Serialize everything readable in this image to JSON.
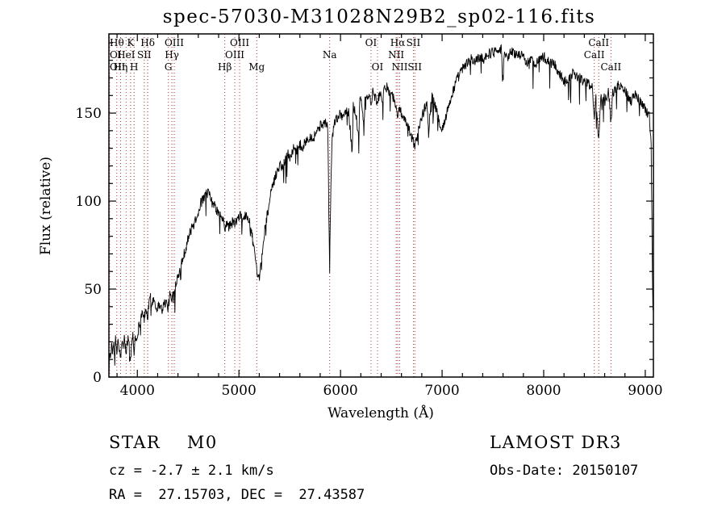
{
  "chart_data": {
    "type": "line",
    "title": "spec-57030-M31028N29B2_sp02-116.fits",
    "xlabel": "Wavelength (Å)",
    "ylabel": "Flux (relative)",
    "xlim": [
      3720,
      9080
    ],
    "ylim": [
      0,
      195
    ],
    "xticks": [
      4000,
      5000,
      6000,
      7000,
      8000,
      9000
    ],
    "yticks": [
      0,
      50,
      100,
      150
    ],
    "x_minor_step": 200,
    "y_minor_step": 10,
    "grid": false,
    "legend": "none",
    "line_color": "#000000",
    "marker_line_color": "#b03030",
    "noise_amplitude": 3,
    "line_markers": [
      {
        "label": "Hθ",
        "wavelength": 3798,
        "row": 1
      },
      {
        "label": "K",
        "wavelength": 3934,
        "row": 1
      },
      {
        "label": "Hδ",
        "wavelength": 4102,
        "row": 1
      },
      {
        "label": "OIII",
        "wavelength": 4363,
        "row": 1
      },
      {
        "label": "OIII",
        "wavelength": 5007,
        "row": 1
      },
      {
        "label": "OI",
        "wavelength": 6300,
        "row": 1
      },
      {
        "label": "Hα",
        "wavelength": 6563,
        "row": 1
      },
      {
        "label": "SII",
        "wavelength": 6717,
        "row": 1
      },
      {
        "label": "CaII",
        "wavelength": 8542,
        "row": 1
      },
      {
        "label": "OI",
        "wavelength": 3727,
        "row": 2
      },
      {
        "label": "HeI",
        "wavelength": 3889,
        "row": 2
      },
      {
        "label": "SII",
        "wavelength": 4068,
        "row": 2
      },
      {
        "label": "Hγ",
        "wavelength": 4340,
        "row": 2
      },
      {
        "label": "OIII",
        "wavelength": 4959,
        "row": 2
      },
      {
        "label": "Na",
        "wavelength": 5893,
        "row": 2
      },
      {
        "label": "NII",
        "wavelength": 6548,
        "row": 2
      },
      {
        "label": "CaII",
        "wavelength": 8498,
        "row": 2
      },
      {
        "label": "OII",
        "wavelength": 3727,
        "row": 3
      },
      {
        "label": "Hη",
        "wavelength": 3835,
        "row": 3
      },
      {
        "label": "H",
        "wavelength": 3968,
        "row": 3
      },
      {
        "label": "G",
        "wavelength": 4305,
        "row": 3
      },
      {
        "label": "Hβ",
        "wavelength": 4861,
        "row": 3
      },
      {
        "label": "Mg",
        "wavelength": 5175,
        "row": 3
      },
      {
        "label": "OI",
        "wavelength": 6364,
        "row": 3
      },
      {
        "label": "NII",
        "wavelength": 6583,
        "row": 3
      },
      {
        "label": "SII",
        "wavelength": 6731,
        "row": 3
      },
      {
        "label": "CaII",
        "wavelength": 8662,
        "row": 3
      }
    ],
    "spectrum": [
      [
        3720,
        3
      ],
      [
        3728,
        16
      ],
      [
        3736,
        9
      ],
      [
        3745,
        19
      ],
      [
        3755,
        12
      ],
      [
        3765,
        20
      ],
      [
        3775,
        14
      ],
      [
        3785,
        21
      ],
      [
        3798,
        13
      ],
      [
        3810,
        22
      ],
      [
        3822,
        15
      ],
      [
        3835,
        11
      ],
      [
        3848,
        20
      ],
      [
        3860,
        16
      ],
      [
        3872,
        22
      ],
      [
        3889,
        13
      ],
      [
        3900,
        19
      ],
      [
        3912,
        23
      ],
      [
        3923,
        17
      ],
      [
        3934,
        9
      ],
      [
        3945,
        20
      ],
      [
        3956,
        24
      ],
      [
        3968,
        13
      ],
      [
        3980,
        24
      ],
      [
        3992,
        20
      ],
      [
        4005,
        26
      ],
      [
        4020,
        30
      ],
      [
        4035,
        34
      ],
      [
        4050,
        38
      ],
      [
        4068,
        33
      ],
      [
        4085,
        39
      ],
      [
        4101,
        33
      ],
      [
        4115,
        42
      ],
      [
        4130,
        45
      ],
      [
        4145,
        42
      ],
      [
        4160,
        45
      ],
      [
        4180,
        41
      ],
      [
        4200,
        39
      ],
      [
        4220,
        42
      ],
      [
        4240,
        38
      ],
      [
        4260,
        41
      ],
      [
        4280,
        43
      ],
      [
        4305,
        39
      ],
      [
        4320,
        47
      ],
      [
        4340,
        43
      ],
      [
        4355,
        50
      ],
      [
        4363,
        47
      ],
      [
        4380,
        54
      ],
      [
        4400,
        58
      ],
      [
        4425,
        63
      ],
      [
        4450,
        68
      ],
      [
        4475,
        73
      ],
      [
        4500,
        79
      ],
      [
        4525,
        83
      ],
      [
        4550,
        86
      ],
      [
        4575,
        90
      ],
      [
        4600,
        94
      ],
      [
        4625,
        99
      ],
      [
        4650,
        101
      ],
      [
        4675,
        104
      ],
      [
        4700,
        105
      ],
      [
        4720,
        101
      ],
      [
        4740,
        99
      ],
      [
        4760,
        97
      ],
      [
        4780,
        95
      ],
      [
        4800,
        93
      ],
      [
        4820,
        91
      ],
      [
        4840,
        90
      ],
      [
        4861,
        84
      ],
      [
        4880,
        88
      ],
      [
        4900,
        85
      ],
      [
        4920,
        87
      ],
      [
        4940,
        88
      ],
      [
        4959,
        87
      ],
      [
        4980,
        89
      ],
      [
        5007,
        91
      ],
      [
        5025,
        92
      ],
      [
        5045,
        90
      ],
      [
        5065,
        92
      ],
      [
        5085,
        90
      ],
      [
        5105,
        88
      ],
      [
        5125,
        82
      ],
      [
        5150,
        72
      ],
      [
        5170,
        62
      ],
      [
        5190,
        54
      ],
      [
        5210,
        60
      ],
      [
        5230,
        71
      ],
      [
        5255,
        84
      ],
      [
        5280,
        93
      ],
      [
        5305,
        101
      ],
      [
        5330,
        108
      ],
      [
        5355,
        113
      ],
      [
        5380,
        118
      ],
      [
        5405,
        121
      ],
      [
        5430,
        119
      ],
      [
        5455,
        124
      ],
      [
        5480,
        127
      ],
      [
        5505,
        125
      ],
      [
        5530,
        129
      ],
      [
        5555,
        131
      ],
      [
        5580,
        129
      ],
      [
        5605,
        132
      ],
      [
        5630,
        130
      ],
      [
        5655,
        134
      ],
      [
        5680,
        136
      ],
      [
        5705,
        137
      ],
      [
        5730,
        135
      ],
      [
        5755,
        139
      ],
      [
        5780,
        141
      ],
      [
        5805,
        143
      ],
      [
        5830,
        144
      ],
      [
        5855,
        145
      ],
      [
        5875,
        141
      ],
      [
        5885,
        95
      ],
      [
        5893,
        62
      ],
      [
        5902,
        98
      ],
      [
        5915,
        132
      ],
      [
        5930,
        142
      ],
      [
        5950,
        146
      ],
      [
        5975,
        148
      ],
      [
        6000,
        150
      ],
      [
        6025,
        148
      ],
      [
        6050,
        151
      ],
      [
        6080,
        150
      ],
      [
        6115,
        128
      ],
      [
        6125,
        154
      ],
      [
        6150,
        150
      ],
      [
        6180,
        135
      ],
      [
        6190,
        158
      ],
      [
        6215,
        153
      ],
      [
        6230,
        140
      ],
      [
        6240,
        156
      ],
      [
        6265,
        159
      ],
      [
        6285,
        161
      ],
      [
        6300,
        153
      ],
      [
        6315,
        162
      ],
      [
        6340,
        159
      ],
      [
        6364,
        155
      ],
      [
        6385,
        162
      ],
      [
        6410,
        158
      ],
      [
        6435,
        163
      ],
      [
        6460,
        165
      ],
      [
        6485,
        162
      ],
      [
        6510,
        160
      ],
      [
        6535,
        157
      ],
      [
        6548,
        152
      ],
      [
        6563,
        148
      ],
      [
        6575,
        154
      ],
      [
        6590,
        151
      ],
      [
        6610,
        148
      ],
      [
        6635,
        145
      ],
      [
        6660,
        142
      ],
      [
        6685,
        139
      ],
      [
        6710,
        135
      ],
      [
        6731,
        131
      ],
      [
        6750,
        136
      ],
      [
        6775,
        142
      ],
      [
        6800,
        148
      ],
      [
        6825,
        152
      ],
      [
        6850,
        156
      ],
      [
        6867,
        138
      ],
      [
        6882,
        152
      ],
      [
        6900,
        159
      ],
      [
        6925,
        155
      ],
      [
        6950,
        150
      ],
      [
        6975,
        145
      ],
      [
        7000,
        141
      ],
      [
        7025,
        145
      ],
      [
        7050,
        151
      ],
      [
        7080,
        157
      ],
      [
        7110,
        163
      ],
      [
        7140,
        168
      ],
      [
        7170,
        172
      ],
      [
        7200,
        175
      ],
      [
        7230,
        177
      ],
      [
        7260,
        179
      ],
      [
        7290,
        181
      ],
      [
        7320,
        179
      ],
      [
        7350,
        181
      ],
      [
        7380,
        182
      ],
      [
        7410,
        181
      ],
      [
        7440,
        183
      ],
      [
        7470,
        184
      ],
      [
        7500,
        185
      ],
      [
        7530,
        186
      ],
      [
        7560,
        187
      ],
      [
        7585,
        186
      ],
      [
        7594,
        168
      ],
      [
        7610,
        184
      ],
      [
        7640,
        182
      ],
      [
        7670,
        184
      ],
      [
        7700,
        185
      ],
      [
        7730,
        183
      ],
      [
        7760,
        184
      ],
      [
        7790,
        182
      ],
      [
        7820,
        180
      ],
      [
        7850,
        179
      ],
      [
        7880,
        180
      ],
      [
        7910,
        178
      ],
      [
        7940,
        180
      ],
      [
        7970,
        181
      ],
      [
        8000,
        182
      ],
      [
        8030,
        180
      ],
      [
        8060,
        178
      ],
      [
        8090,
        179
      ],
      [
        8120,
        176
      ],
      [
        8150,
        173
      ],
      [
        8180,
        170
      ],
      [
        8210,
        168
      ],
      [
        8240,
        170
      ],
      [
        8270,
        172
      ],
      [
        8300,
        173
      ],
      [
        8330,
        171
      ],
      [
        8360,
        170
      ],
      [
        8390,
        168
      ],
      [
        8420,
        167
      ],
      [
        8450,
        166
      ],
      [
        8480,
        164
      ],
      [
        8498,
        148
      ],
      [
        8515,
        159
      ],
      [
        8542,
        133
      ],
      [
        8558,
        157
      ],
      [
        8585,
        161
      ],
      [
        8610,
        159
      ],
      [
        8640,
        162
      ],
      [
        8662,
        145
      ],
      [
        8680,
        161
      ],
      [
        8710,
        164
      ],
      [
        8740,
        166
      ],
      [
        8770,
        165
      ],
      [
        8800,
        163
      ],
      [
        8830,
        160
      ],
      [
        8860,
        157
      ],
      [
        8890,
        161
      ],
      [
        8920,
        159
      ],
      [
        8950,
        157
      ],
      [
        8980,
        155
      ],
      [
        9010,
        151
      ],
      [
        9040,
        148
      ],
      [
        9058,
        135
      ],
      [
        9068,
        70
      ],
      [
        9075,
        38
      ]
    ]
  },
  "annotations": {
    "class_line": "STAR    M0",
    "cz_line": "cz = -2.7 ± 2.1 km/s",
    "radec_line": "RA =  27.15703, DEC =  27.43587",
    "survey": "LAMOST DR3",
    "obs_date": "Obs-Date: 20150107"
  }
}
